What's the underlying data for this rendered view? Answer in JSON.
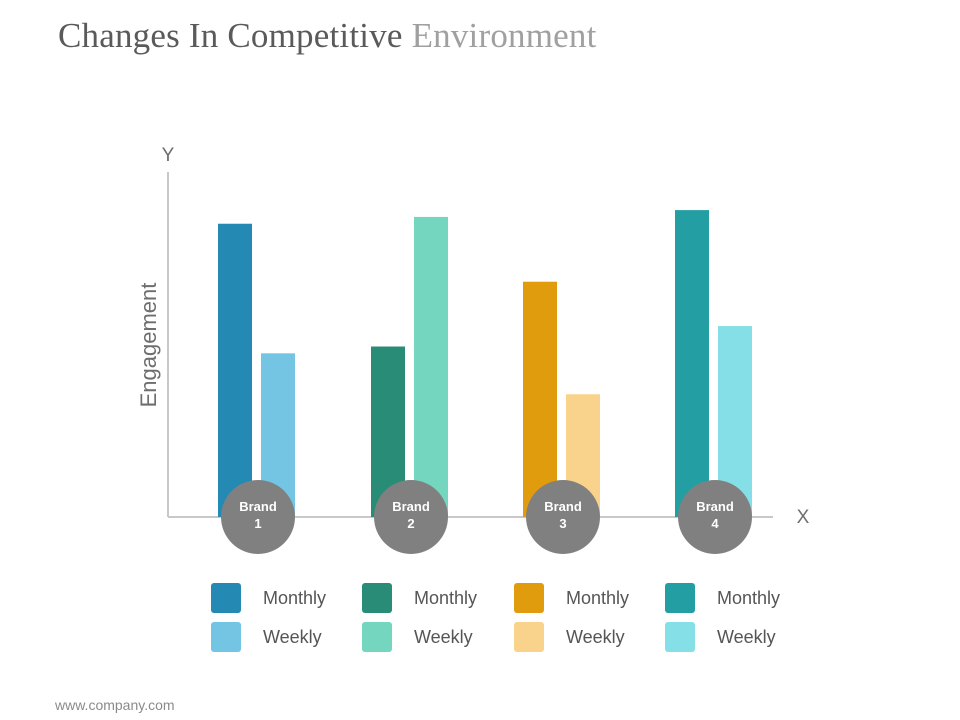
{
  "page": {
    "title_main": "Changes In Competitive",
    "title_accent": "Environment",
    "footer": "www.company.com"
  },
  "chart_data": {
    "type": "bar",
    "title": "Changes In Competitive Environment",
    "xlabel": "X",
    "ylabel": "Engagement",
    "y_axis_letter": "Y",
    "ylim": [
      0,
      100
    ],
    "categories": [
      {
        "line1": "Brand",
        "line2": "1"
      },
      {
        "line1": "Brand",
        "line2": "2"
      },
      {
        "line1": "Brand",
        "line2": "3"
      },
      {
        "line1": "Brand",
        "line2": "4"
      }
    ],
    "series": [
      {
        "name": "Monthly",
        "values": [
          86,
          50,
          69,
          90
        ]
      },
      {
        "name": "Weekly",
        "values": [
          48,
          88,
          36,
          56
        ]
      }
    ],
    "colors": {
      "Monthly": [
        "#2489b3",
        "#298c76",
        "#e09c0c",
        "#239ea3"
      ],
      "Weekly": [
        "#74c4e3",
        "#74d6bf",
        "#f9d38c",
        "#85dfe6"
      ]
    },
    "axis_color": "#c8c8c8",
    "label_color": "#6e6e6e",
    "badge_color": "#808080",
    "grid": false,
    "legend_position": "bottom"
  }
}
